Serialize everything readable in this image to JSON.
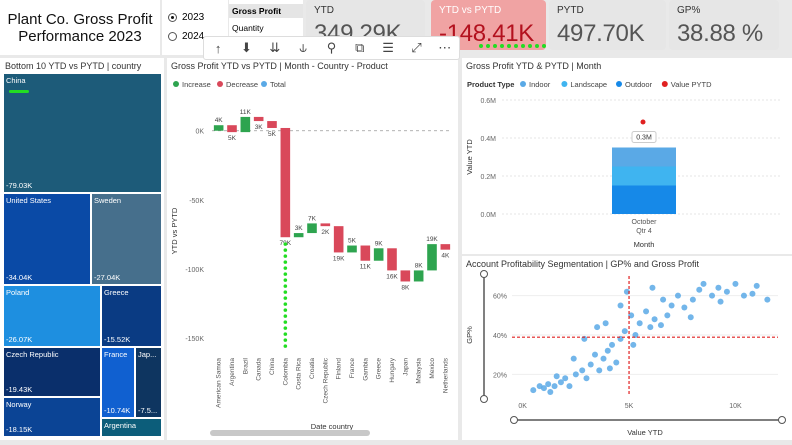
{
  "report_title_line1": "Plant Co. Gross Profit",
  "report_title_line2": "Performance 2023",
  "year_slicer": {
    "options": [
      "2023",
      "2024"
    ],
    "selected": "2023"
  },
  "measure_slicer": {
    "selected": "Gross Profit",
    "other": "Quantity"
  },
  "kpis": [
    {
      "label": "YTD",
      "value": "349.29K",
      "state": "normal"
    },
    {
      "label": "YTD vs PYTD",
      "value": "-148.41K",
      "state": "negative"
    },
    {
      "label": "PYTD",
      "value": "497.70K",
      "state": "normal"
    },
    {
      "label": "GP%",
      "value": "38.88 %",
      "state": "normal"
    }
  ],
  "toolbar": {
    "icons": [
      "arrow-up-icon",
      "drill-down-icon",
      "double-arrow-down-icon",
      "expand-hierarchy-icon",
      "pin-icon",
      "copy-icon",
      "filter-icon",
      "focus-mode-icon",
      "more-options-icon"
    ],
    "glyphs": [
      "↑",
      "⬇",
      "⇊",
      "⫝",
      "⚲",
      "⧉",
      "☰",
      "⤢",
      "⋯"
    ]
  },
  "treemap": {
    "title": "Bottom 10 YTD vs PYTD | country",
    "tiles": [
      {
        "name": "China",
        "value": "-79.03K",
        "color": "#1d5b79"
      },
      {
        "name": "United States",
        "value": "-34.04K",
        "color": "#0a4aa6"
      },
      {
        "name": "Sweden",
        "value": "-27.04K",
        "color": "#466f8c"
      },
      {
        "name": "Poland",
        "value": "-26.07K",
        "color": "#1e8fe0"
      },
      {
        "name": "Greece",
        "value": "-15.52K",
        "color": "#0a3b83"
      },
      {
        "name": "Czech Republic",
        "value": "-19.43K",
        "color": "#0a2f6b"
      },
      {
        "name": "France",
        "value": "-10.74K",
        "color": "#1060d0"
      },
      {
        "name": "Jap...",
        "value": "-7.5...",
        "color": "#0e3560"
      },
      {
        "name": "Norway",
        "value": "-18.15K",
        "color": "#0b4495"
      },
      {
        "name": "Argentina",
        "value": "",
        "color": "#0c5d7a"
      }
    ]
  },
  "waterfall_title": "Gross Profit YTD vs PYTD | Month - Country - Product",
  "product_title": "Gross Profit YTD & PYTD | Month",
  "scatter_title": "Account Profitability Segmentation | GP% and Gross Profit",
  "chart_data": [
    {
      "type": "bar",
      "subtype": "waterfall",
      "legend": [
        "Increase",
        "Decrease",
        "Total"
      ],
      "legend_colors": [
        "#2ea44f",
        "#d9485a",
        "#5aa9e6"
      ],
      "categories": [
        "American Samoa",
        "Argentina",
        "Brazil",
        "Canada",
        "China",
        "Colombia",
        "Costa Rica",
        "Croatia",
        "Czech Republic",
        "Finland",
        "France",
        "Gambia",
        "Greece",
        "Hungary",
        "Japan",
        "Malaysia",
        "Mexico",
        "Netherlands"
      ],
      "values": [
        4,
        -5,
        11,
        -3,
        -5,
        -79,
        3,
        7,
        -2,
        -19,
        5,
        -11,
        9,
        -16,
        -8,
        8,
        19,
        -4
      ],
      "data_labels": [
        "4K",
        "5K",
        "11K",
        "3K",
        "5K",
        "79K",
        "3K",
        "7K",
        "2K",
        "19K",
        "5K",
        "11K",
        "9K",
        "16K",
        "8K",
        "8K",
        "19K",
        "4K"
      ],
      "ylabel": "YTD vs PYTD",
      "xlabel": "Date country",
      "yticks": [
        "0K",
        "-50K",
        "-100K",
        "-150K"
      ],
      "ylim": [
        -160,
        15
      ]
    },
    {
      "type": "bar",
      "subtype": "stacked-column",
      "legend_title": "Product Type",
      "legend": [
        {
          "name": "Indoor",
          "color": "#5aa9e6"
        },
        {
          "name": "Landscape",
          "color": "#3fb4f0"
        },
        {
          "name": "Outdoor",
          "color": "#1689e8"
        },
        {
          "name": "Value PYTD",
          "color": "#e02020"
        }
      ],
      "categories": [
        "October"
      ],
      "category_sublabel": "Qtr 4",
      "series": [
        {
          "name": "Outdoor",
          "values": [
            0.15
          ]
        },
        {
          "name": "Landscape",
          "values": [
            0.1
          ]
        },
        {
          "name": "Indoor",
          "values": [
            0.1
          ]
        }
      ],
      "pytd_point": 0.5,
      "total_label": "0.3M",
      "ylabel": "Value YTD",
      "xlabel": "Month",
      "yticks": [
        "0.0M",
        "0.2M",
        "0.4M",
        "0.6M"
      ],
      "ylim": [
        0,
        0.6
      ]
    },
    {
      "type": "scatter",
      "xlabel": "Value YTD",
      "ylabel": "GP%",
      "xticks": [
        "0K",
        "5K",
        "10K"
      ],
      "yticks": [
        "20%",
        "40%",
        "60%"
      ],
      "xlim": [
        -0.5,
        12
      ],
      "ylim": [
        10,
        70
      ],
      "ref_x": 5,
      "ref_y": 38.9,
      "point_color": "#5aa9e6",
      "ref_color": "#e02020",
      "points": [
        [
          0.5,
          12
        ],
        [
          0.8,
          14
        ],
        [
          1,
          13
        ],
        [
          1.2,
          15
        ],
        [
          1.5,
          14
        ],
        [
          1.8,
          16
        ],
        [
          2,
          18
        ],
        [
          2.2,
          14
        ],
        [
          2.5,
          20
        ],
        [
          2.8,
          22
        ],
        [
          3,
          18
        ],
        [
          3.2,
          25
        ],
        [
          3.4,
          30
        ],
        [
          3.6,
          22
        ],
        [
          3.8,
          28
        ],
        [
          4,
          32
        ],
        [
          4.2,
          35
        ],
        [
          4.4,
          26
        ],
        [
          4.6,
          38
        ],
        [
          4.8,
          42
        ],
        [
          4.6,
          55
        ],
        [
          4.9,
          62
        ],
        [
          5.1,
          50
        ],
        [
          5.3,
          40
        ],
        [
          5.5,
          46
        ],
        [
          5.8,
          52
        ],
        [
          6,
          44
        ],
        [
          6.2,
          48
        ],
        [
          6.5,
          45
        ],
        [
          6.8,
          50
        ],
        [
          7,
          55
        ],
        [
          7.3,
          60
        ],
        [
          7.6,
          54
        ],
        [
          8,
          58
        ],
        [
          8.3,
          63
        ],
        [
          8.5,
          66
        ],
        [
          8.9,
          60
        ],
        [
          9.2,
          64
        ],
        [
          9.6,
          62
        ],
        [
          10,
          66
        ],
        [
          10.4,
          60
        ],
        [
          10.8,
          61
        ],
        [
          11,
          65
        ],
        [
          11.5,
          58
        ],
        [
          3.5,
          44
        ],
        [
          2.9,
          38
        ],
        [
          4.1,
          23
        ],
        [
          1.6,
          19
        ],
        [
          2.4,
          28
        ],
        [
          5.2,
          35
        ],
        [
          6.6,
          58
        ],
        [
          7.9,
          49
        ],
        [
          9.3,
          57
        ],
        [
          6.1,
          64
        ],
        [
          3.9,
          46
        ],
        [
          1.3,
          11
        ]
      ]
    }
  ]
}
